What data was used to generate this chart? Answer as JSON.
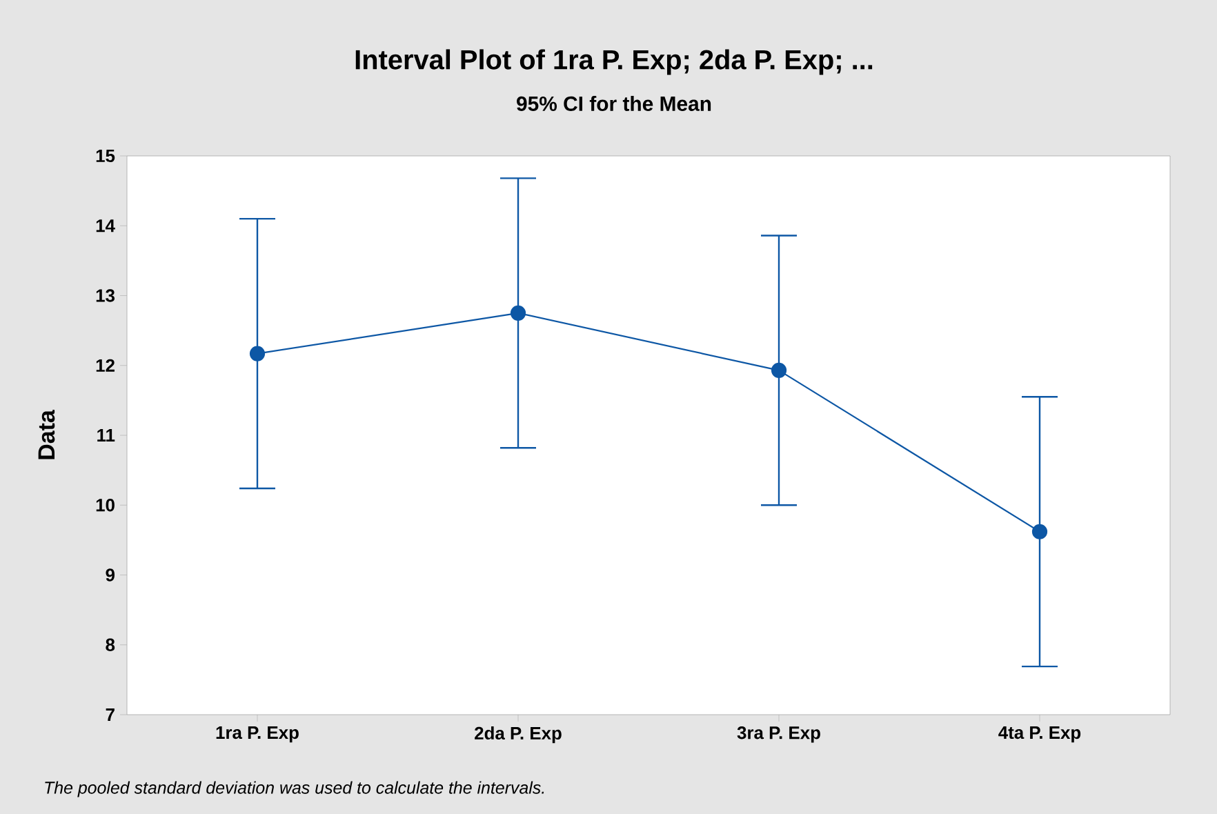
{
  "chart_data": {
    "type": "line",
    "title": "Interval Plot of 1ra P. Exp; 2da P. Exp; ...",
    "subtitle": "95% CI for the Mean",
    "ylabel": "Data",
    "categories": [
      "1ra P. Exp",
      "2da P. Exp",
      "3ra P. Exp",
      "4ta P. Exp"
    ],
    "series": [
      {
        "color": "#0d57a5",
        "values": [
          12.17,
          12.75,
          11.93,
          9.62
        ],
        "errors": [
          1.93,
          1.93,
          1.93,
          1.93
        ]
      }
    ],
    "ylim": [
      7,
      15
    ],
    "yticks": [
      7,
      8,
      9,
      10,
      11,
      12,
      13,
      14,
      15
    ],
    "marker": "circle",
    "line_style": "solid",
    "annotations": [
      "The pooled standard deviation was used to calculate the intervals."
    ]
  }
}
